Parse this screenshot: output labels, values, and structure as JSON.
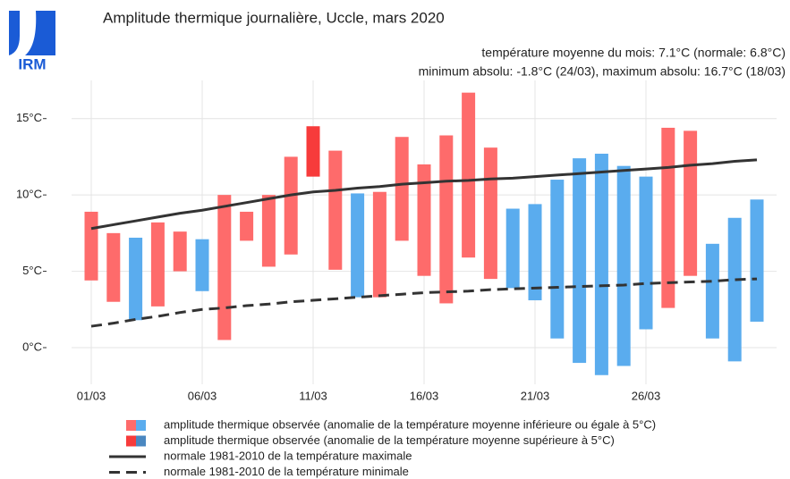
{
  "chart_data": {
    "type": "range_bar",
    "logo_text": "IRM",
    "title": "Amplitude thermique journalière, Uccle, mars 2020",
    "annotations": [
      "température moyenne du mois: 7.1°C (normale: 6.8°C)",
      "minimum absolu: -1.8°C (24/03), maximum absolu: 16.7°C (18/03)"
    ],
    "categories": [
      "01/03",
      null,
      null,
      null,
      null,
      "06/03",
      null,
      null,
      null,
      null,
      "11/03",
      null,
      null,
      null,
      null,
      "16/03",
      null,
      null,
      null,
      null,
      "21/03",
      null,
      null,
      null,
      null,
      "26/03",
      null,
      null,
      null,
      null,
      null
    ],
    "low": [
      4.4,
      3.0,
      1.8,
      2.7,
      5.0,
      3.7,
      0.5,
      7.0,
      5.3,
      6.1,
      11.2,
      5.1,
      3.3,
      3.3,
      7.0,
      4.7,
      2.9,
      5.9,
      4.5,
      3.9,
      3.1,
      0.6,
      -1.0,
      -1.8,
      -1.2,
      1.2,
      2.6,
      4.7,
      0.6,
      -0.9,
      1.7
    ],
    "high": [
      8.9,
      7.5,
      7.2,
      8.2,
      7.6,
      7.1,
      10.0,
      8.9,
      10.0,
      12.5,
      14.5,
      12.9,
      10.1,
      10.2,
      13.8,
      12.0,
      13.9,
      16.7,
      13.1,
      9.1,
      9.4,
      11.0,
      12.4,
      12.7,
      11.9,
      11.2,
      14.4,
      14.2,
      6.8,
      8.5,
      9.7
    ],
    "bar_colors": [
      "#fe6b6b",
      "#fe6b6b",
      "#5aacee",
      "#fe6b6b",
      "#fe6b6b",
      "#5aacee",
      "#fe6b6b",
      "#fe6b6b",
      "#fe6b6b",
      "#fe6b6b",
      "#f73b3b",
      "#fe6b6b",
      "#5aacee",
      "#fe6b6b",
      "#fe6b6b",
      "#fe6b6b",
      "#fe6b6b",
      "#fe6b6b",
      "#fe6b6b",
      "#5aacee",
      "#5aacee",
      "#5aacee",
      "#5aacee",
      "#5aacee",
      "#5aacee",
      "#5aacee",
      "#fe6b6b",
      "#fe6b6b",
      "#5aacee",
      "#5aacee",
      "#5aacee"
    ],
    "lines": [
      {
        "name": "normale 1981-2010 de la température maximale",
        "color": "#333333",
        "dashed": false,
        "values": [
          7.8,
          8.05,
          8.3,
          8.55,
          8.8,
          9.0,
          9.25,
          9.5,
          9.75,
          10.0,
          10.2,
          10.3,
          10.45,
          10.55,
          10.7,
          10.8,
          10.9,
          10.95,
          11.05,
          11.1,
          11.2,
          11.3,
          11.4,
          11.5,
          11.6,
          11.7,
          11.8,
          11.95,
          12.05,
          12.2,
          12.3
        ]
      },
      {
        "name": "normale 1981-2010 de la température minimale",
        "color": "#333333",
        "dashed": true,
        "values": [
          1.4,
          1.6,
          1.85,
          2.05,
          2.3,
          2.5,
          2.6,
          2.75,
          2.85,
          3.0,
          3.1,
          3.2,
          3.3,
          3.4,
          3.5,
          3.6,
          3.65,
          3.7,
          3.8,
          3.85,
          3.9,
          3.95,
          4.0,
          4.05,
          4.1,
          4.2,
          4.25,
          4.3,
          4.35,
          4.45,
          4.5
        ]
      }
    ],
    "bar_legend": [
      {
        "name": "amplitude thermique observée (anomalie de la température moyenne inférieure ou égale à 5°C)",
        "colors": [
          "#fe6b6b",
          "#5aacee"
        ]
      },
      {
        "name": "amplitude thermique observée (anomalie de la température moyenne supérieure à 5°C)",
        "colors": [
          "#f73b3b",
          "#4a87c0"
        ]
      }
    ],
    "ylim": [
      -2.4,
      17.5
    ],
    "yticks": [
      {
        "value": 0,
        "label": "0°C"
      },
      {
        "value": 5,
        "label": "5°C"
      },
      {
        "value": 10,
        "label": "10°C"
      },
      {
        "value": 15,
        "label": "15°C"
      }
    ],
    "grid": true
  }
}
